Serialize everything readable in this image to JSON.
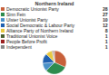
{
  "chart_data": {
    "type": "pie",
    "title": "Northern Ireland",
    "categories": [
      "Democratic Unionist Party",
      "Sinn Fein",
      "Ulster Unionist Party",
      "Social Democratic & Labour Party",
      "Alliance Party of Northern Ireland",
      "Traditional Unionist Voice",
      "People Before Profit",
      "Independent"
    ],
    "values": [
      28,
      27,
      10,
      12,
      8,
      1,
      1,
      1
    ],
    "colors": [
      "#c8603a",
      "#2d8c4e",
      "#4a90c8",
      "#2060b0",
      "#e8c840",
      "#4a6030",
      "#9b2020",
      "#888888"
    ],
    "legend": "top",
    "data_labels": true
  }
}
